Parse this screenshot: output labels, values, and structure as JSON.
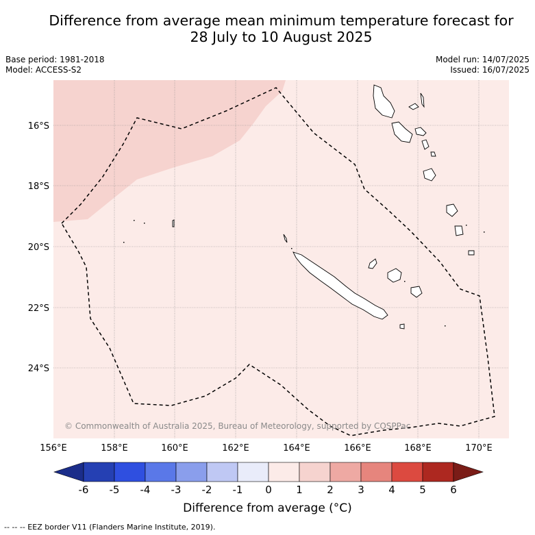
{
  "title_line1": "Difference from average mean minimum temperature forecast for",
  "title_line2": "28 July to 10 August 2025",
  "base_period": "Base period: 1981-2018",
  "model": "Model: ACCESS-S2",
  "model_run": "Model run: 14/07/2025",
  "issued": "Issued: 16/07/2025",
  "copyright": "© Commonwealth of Australia 2025, Bureau of Meteorology, supported by COSPPac",
  "lon_ticks": [
    "156°E",
    "158°E",
    "160°E",
    "162°E",
    "164°E",
    "166°E",
    "168°E",
    "170°E"
  ],
  "lat_ticks": [
    "16°S",
    "18°S",
    "20°S",
    "22°S",
    "24°S"
  ],
  "colorbar": {
    "ticks": [
      "-6",
      "-5",
      "-4",
      "-3",
      "-2",
      "-1",
      "0",
      "1",
      "2",
      "3",
      "4",
      "5",
      "6"
    ],
    "colors": [
      "#1b2d8a",
      "#2540b3",
      "#2f4fe0",
      "#5a78e8",
      "#8a9eec",
      "#bfc8f4",
      "#e9ecfa",
      "#fcebe8",
      "#f6d3cf",
      "#eea9a3",
      "#e6857d",
      "#dc4a40",
      "#ad2820",
      "#7a1c17"
    ],
    "label": "Difference from average (°C)"
  },
  "legend_footer": "-- -- -- EEZ border V11 (Flanders Marine Institute, 2019).",
  "field_colors": {
    "anomaly_0_1": "#fcebe8",
    "anomaly_1_2": "#f6d3cf"
  }
}
